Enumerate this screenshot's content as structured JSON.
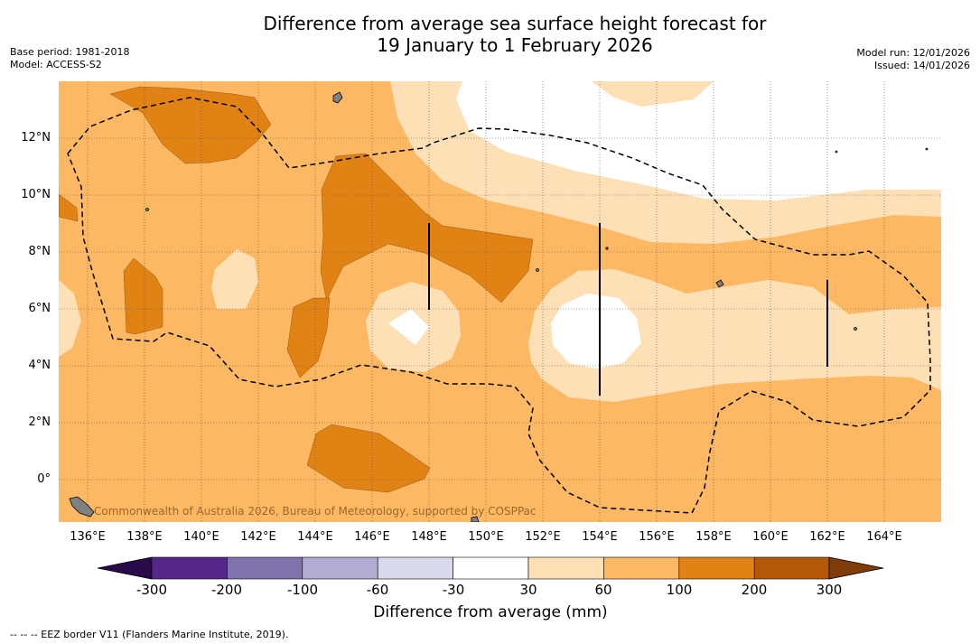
{
  "title": {
    "line1": "Difference from average sea surface height forecast for",
    "line2": "19 January to 1 February 2026"
  },
  "meta_left": {
    "base_period": "Base period: 1981-2018",
    "model": "Model: ACCESS-S2"
  },
  "meta_right": {
    "model_run": "Model run: 12/01/2026",
    "issued": "Issued: 14/01/2026"
  },
  "map": {
    "lat_labels": [
      "12°N",
      "10°N",
      "8°N",
      "6°N",
      "4°N",
      "2°N",
      "0°"
    ],
    "lon_labels": [
      "136°E",
      "138°E",
      "140°E",
      "142°E",
      "144°E",
      "146°E",
      "148°E",
      "150°E",
      "152°E",
      "154°E",
      "156°E",
      "158°E",
      "160°E",
      "162°E",
      "164°E"
    ],
    "lon_range": [
      135,
      166
    ],
    "lat_range": [
      -1.5,
      14
    ],
    "copyright": "Commonwealth of Australia 2026, Bureau of Meteorology, supported by COSPPac"
  },
  "colorbar": {
    "title": "Difference from average (mm)",
    "ticks": [
      "-300",
      "-200",
      "-100",
      "-60",
      "-30",
      "30",
      "60",
      "100",
      "200",
      "300"
    ],
    "colors": [
      "#2a0a4a",
      "#542788",
      "#8073ac",
      "#b2abd2",
      "#d8daeb",
      "#ffffff",
      "#fee0b6",
      "#fdb863",
      "#e08214",
      "#b35806",
      "#7f3b08"
    ]
  },
  "footnote": "-- -- -- EEZ border V11 (Flanders Marine Institute, 2019).",
  "colors": {
    "level_30_60": "#fee0b6",
    "level_60_100": "#fdb863",
    "level_100_200": "#e08214",
    "below_30": "#ffffff",
    "land": "#808080"
  }
}
